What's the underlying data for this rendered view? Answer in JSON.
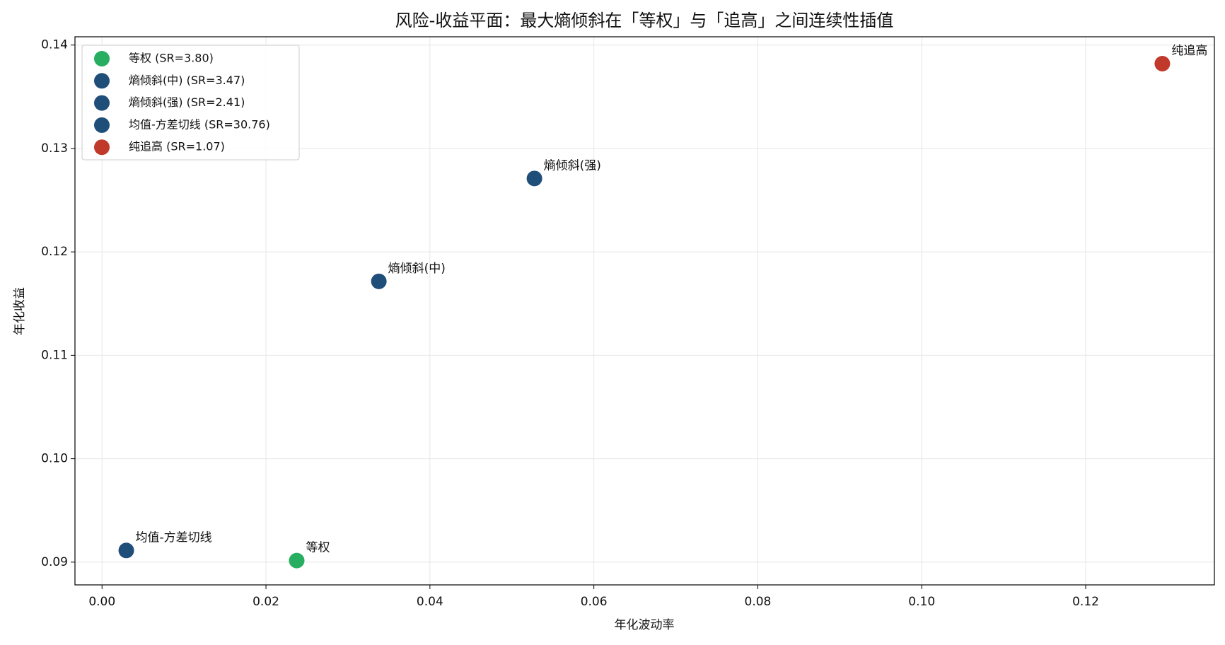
{
  "chart_data": {
    "type": "scatter",
    "title": "风险-收益平面：最大熵倾斜在「等权」与「追高」之间连续性插值",
    "x_label": "年化波动率",
    "y_label": "年化收益",
    "xlim": [
      -0.0033,
      0.1357
    ],
    "ylim": [
      0.0878,
      0.1408
    ],
    "xticks": [
      {
        "value": 0,
        "label": "0.00"
      },
      0.02,
      0.04,
      0.06,
      0.08,
      {
        "value": 0.1,
        "label": "0.10"
      },
      0.12
    ],
    "yticks": [
      0.09,
      {
        "value": 0.1,
        "label": "0.10"
      },
      0.11,
      0.12,
      0.13,
      0.14
    ],
    "grid": true,
    "legend": "upper-left",
    "series": [
      {
        "name": "等权 (SR=3.80)",
        "label": "等权",
        "color": "#27ae60",
        "x": [
          0.02375
        ],
        "values": [
          0.09015
        ]
      },
      {
        "name": "熵倾斜(中) (SR=3.47)",
        "label": "熵倾斜(中)",
        "color": "#1f4e79",
        "x": [
          0.03377
        ],
        "values": [
          0.11715
        ]
      },
      {
        "name": "熵倾斜(强) (SR=2.41)",
        "label": "熵倾斜(强)",
        "color": "#1f4e79",
        "x": [
          0.05275
        ],
        "values": [
          0.1271
        ]
      },
      {
        "name": "均值-方差切线 (SR=30.76)",
        "label": "均值-方差切线",
        "color": "#1f4e79",
        "x": [
          0.00296
        ],
        "values": [
          0.09113
        ]
      },
      {
        "name": "纯追高 (SR=1.07)",
        "label": "纯追高",
        "color": "#c0392b",
        "x": [
          0.12935
        ],
        "values": [
          0.1382
        ]
      }
    ]
  }
}
